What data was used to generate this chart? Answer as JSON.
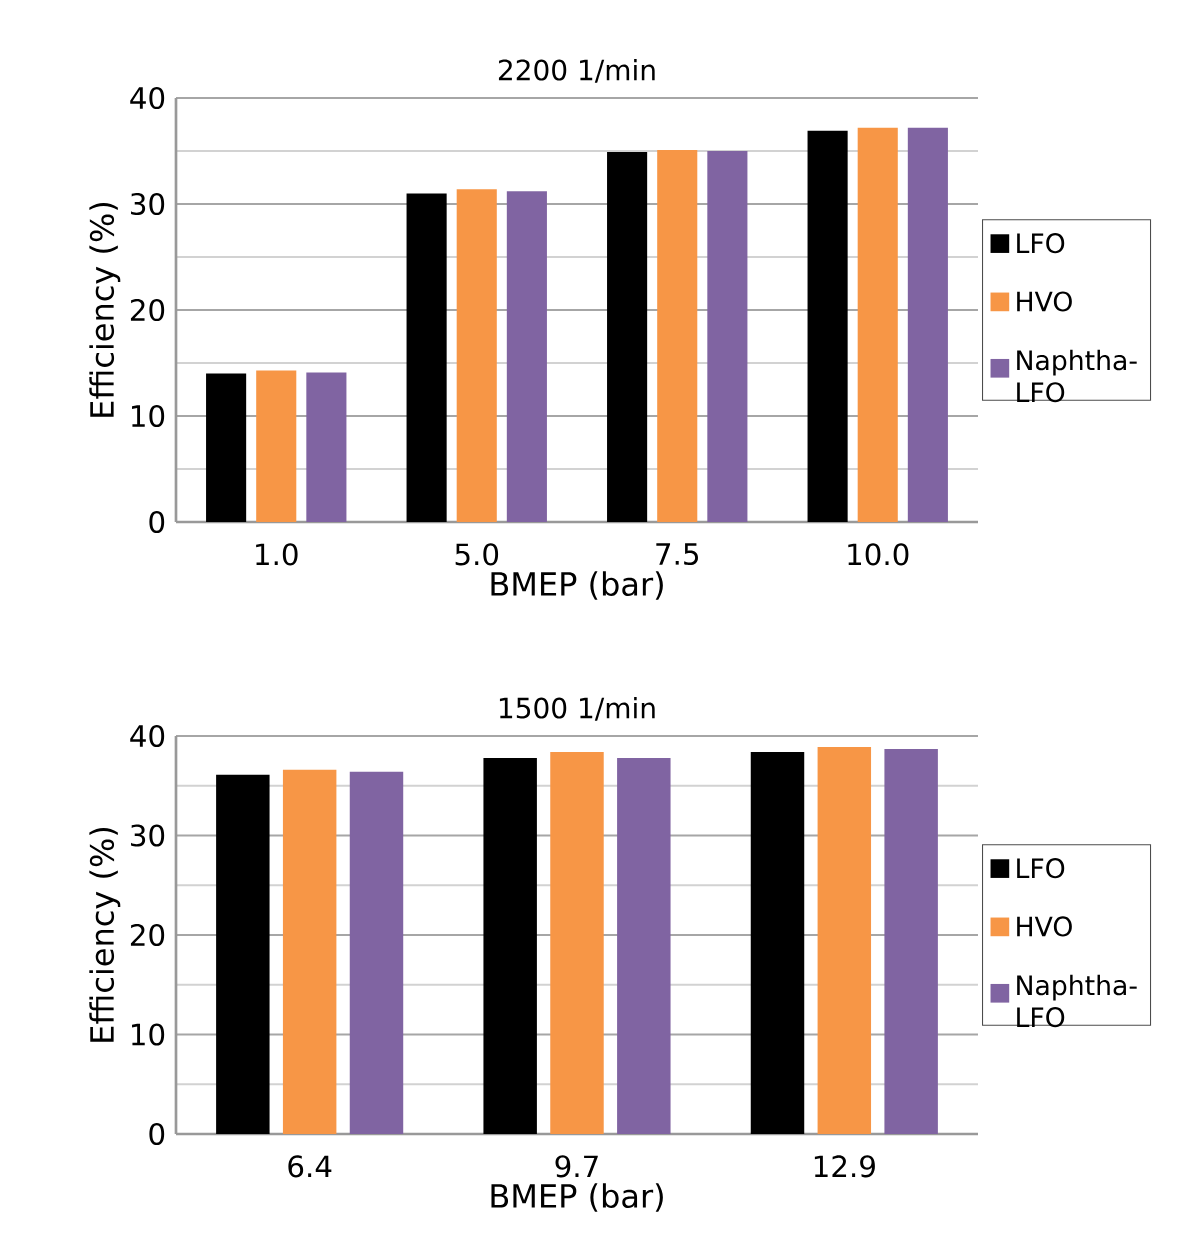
{
  "chart_data": [
    {
      "type": "bar",
      "title": "2200 1/min",
      "xlabel": "BMEP (bar)",
      "ylabel": "Efficiency (%)",
      "categories": [
        "1.0",
        "5.0",
        "7.5",
        "10.0"
      ],
      "series": [
        {
          "name": "LFO",
          "color": "#000000",
          "values": [
            14.0,
            31.0,
            34.9,
            36.9
          ]
        },
        {
          "name": "HVO",
          "color": "#f79646",
          "values": [
            14.3,
            31.4,
            35.1,
            37.2
          ]
        },
        {
          "name": "Naphtha-LFO",
          "color": "#8064a2",
          "values": [
            14.1,
            31.2,
            35.0,
            37.2
          ]
        }
      ],
      "ylim": [
        0,
        40
      ],
      "yticks": [
        0,
        {
          "value": 5,
          "label": null
        },
        10,
        {
          "value": 15,
          "label": null
        },
        20,
        {
          "value": 25,
          "label": null
        },
        30,
        {
          "value": 35,
          "label": null
        },
        40
      ],
      "grid": "y",
      "legend": "right"
    },
    {
      "type": "bar",
      "title": "1500 1/min",
      "xlabel": "BMEP (bar)",
      "ylabel": "Efficiency (%)",
      "categories": [
        "6.4",
        "9.7",
        "12.9"
      ],
      "series": [
        {
          "name": "LFO",
          "color": "#000000",
          "values": [
            36.1,
            37.8,
            38.4
          ]
        },
        {
          "name": "HVO",
          "color": "#f79646",
          "values": [
            36.6,
            38.4,
            38.9
          ]
        },
        {
          "name": "Naphtha-LFO",
          "color": "#8064a2",
          "values": [
            36.4,
            37.8,
            38.7
          ]
        }
      ],
      "ylim": [
        0,
        40
      ],
      "yticks": [
        0,
        {
          "value": 5,
          "label": null
        },
        10,
        {
          "value": 15,
          "label": null
        },
        20,
        {
          "value": 25,
          "label": null
        },
        30,
        {
          "value": 35,
          "label": null
        },
        40
      ],
      "grid": "y",
      "legend": "right"
    }
  ]
}
